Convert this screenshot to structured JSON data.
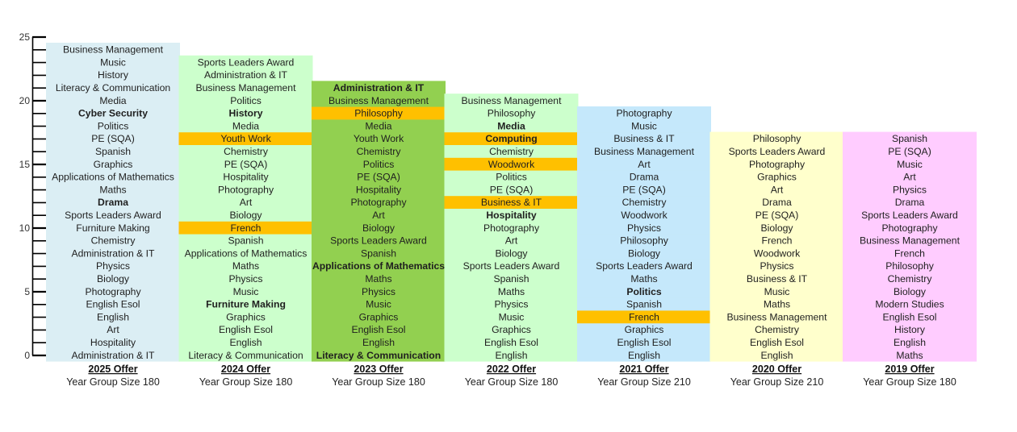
{
  "chart_data": {
    "type": "bar",
    "ylim": [
      0,
      25
    ],
    "y_ticks": [
      "0",
      "5",
      "10",
      "15",
      "20",
      "25"
    ],
    "colors": {
      "axis": "#000000",
      "text": "#1f1f1f",
      "highlight": "#ffc000"
    },
    "series": [
      {
        "label": "2025 Offer",
        "subtitle": "Year Group Size 180",
        "color": "#dbeef4",
        "subjects": [
          {
            "name": "Administration & IT"
          },
          {
            "name": "Hospitality"
          },
          {
            "name": "Art"
          },
          {
            "name": "English"
          },
          {
            "name": "English Esol"
          },
          {
            "name": "Photography"
          },
          {
            "name": "Biology"
          },
          {
            "name": "Physics"
          },
          {
            "name": "Administration & IT"
          },
          {
            "name": "Chemistry"
          },
          {
            "name": "Furniture Making"
          },
          {
            "name": "Sports Leaders Award"
          },
          {
            "name": "Drama",
            "bold": true
          },
          {
            "name": "Maths"
          },
          {
            "name": "Applications of Mathematics"
          },
          {
            "name": "Graphics"
          },
          {
            "name": "Spanish"
          },
          {
            "name": "PE (SQA)"
          },
          {
            "name": "Politics"
          },
          {
            "name": "Cyber Security",
            "bold": true
          },
          {
            "name": "Media"
          },
          {
            "name": "Literacy & Communication"
          },
          {
            "name": "History"
          },
          {
            "name": "Music"
          },
          {
            "name": "Business Management"
          }
        ]
      },
      {
        "label": "2024 Offer",
        "subtitle": "Year Group Size 180",
        "color": "#ccffcc",
        "subjects": [
          {
            "name": "Literacy & Communication"
          },
          {
            "name": "English"
          },
          {
            "name": "English Esol"
          },
          {
            "name": "Graphics"
          },
          {
            "name": "Furniture Making",
            "bold": true
          },
          {
            "name": "Music"
          },
          {
            "name": "Physics"
          },
          {
            "name": "Maths"
          },
          {
            "name": "Applications of Mathematics"
          },
          {
            "name": "Spanish"
          },
          {
            "name": "French",
            "highlight": true
          },
          {
            "name": "Biology"
          },
          {
            "name": "Art"
          },
          {
            "name": "Photography"
          },
          {
            "name": "Hospitality"
          },
          {
            "name": "PE (SQA)"
          },
          {
            "name": "Chemistry"
          },
          {
            "name": "Youth Work",
            "highlight": true
          },
          {
            "name": "Media"
          },
          {
            "name": "History",
            "bold": true
          },
          {
            "name": "Politics"
          },
          {
            "name": "Business Management"
          },
          {
            "name": "Administration & IT"
          },
          {
            "name": "Sports Leaders Award"
          }
        ]
      },
      {
        "label": "2023 Offer",
        "subtitle": "Year Group Size 180",
        "color": "#92d050",
        "subjects": [
          {
            "name": "Literacy & Communication",
            "bold": true
          },
          {
            "name": "English"
          },
          {
            "name": "English Esol"
          },
          {
            "name": "Graphics"
          },
          {
            "name": "Music"
          },
          {
            "name": "Physics"
          },
          {
            "name": "Maths"
          },
          {
            "name": "Applications of Mathematics",
            "bold": true
          },
          {
            "name": "Spanish"
          },
          {
            "name": "Sports Leaders Award"
          },
          {
            "name": "Biology"
          },
          {
            "name": "Art"
          },
          {
            "name": "Photography"
          },
          {
            "name": "Hospitality"
          },
          {
            "name": "PE (SQA)"
          },
          {
            "name": "Politics"
          },
          {
            "name": "Chemistry"
          },
          {
            "name": "Youth Work"
          },
          {
            "name": "Media"
          },
          {
            "name": "Philosophy",
            "highlight": true
          },
          {
            "name": "Business Management"
          },
          {
            "name": "Administration & IT",
            "bold": true
          }
        ]
      },
      {
        "label": "2022 Offer",
        "subtitle": "Year Group Size 180",
        "color": "#ccffcc",
        "subjects": [
          {
            "name": "English"
          },
          {
            "name": "English Esol"
          },
          {
            "name": "Graphics"
          },
          {
            "name": "Music"
          },
          {
            "name": "Physics"
          },
          {
            "name": "Maths"
          },
          {
            "name": "Spanish"
          },
          {
            "name": "Sports Leaders Award"
          },
          {
            "name": "Biology"
          },
          {
            "name": "Art"
          },
          {
            "name": "Photography"
          },
          {
            "name": "Hospitality",
            "bold": true
          },
          {
            "name": "Business & IT",
            "highlight": true
          },
          {
            "name": "PE (SQA)"
          },
          {
            "name": "Politics"
          },
          {
            "name": "Woodwork",
            "highlight": true
          },
          {
            "name": "Chemistry"
          },
          {
            "name": "Computing",
            "bold": true,
            "highlight": true
          },
          {
            "name": "Media",
            "bold": true
          },
          {
            "name": "Philosophy"
          },
          {
            "name": "Business Management"
          }
        ]
      },
      {
        "label": "2021 Offer",
        "subtitle": "Year Group Size 210",
        "color": "#c5e8fb",
        "subjects": [
          {
            "name": "English"
          },
          {
            "name": "English Esol"
          },
          {
            "name": "Graphics"
          },
          {
            "name": "French",
            "highlight": true
          },
          {
            "name": "Spanish"
          },
          {
            "name": "Politics",
            "bold": true
          },
          {
            "name": "Maths"
          },
          {
            "name": "Sports Leaders Award"
          },
          {
            "name": "Biology"
          },
          {
            "name": "Philosophy"
          },
          {
            "name": "Physics"
          },
          {
            "name": "Woodwork"
          },
          {
            "name": "Chemistry"
          },
          {
            "name": "PE (SQA)"
          },
          {
            "name": "Drama"
          },
          {
            "name": "Art"
          },
          {
            "name": "Business Management"
          },
          {
            "name": "Business & IT"
          },
          {
            "name": "Music"
          },
          {
            "name": "Photography"
          }
        ]
      },
      {
        "label": "2020 Offer",
        "subtitle": "Year Group Size 210",
        "color": "#ffffcc",
        "subjects": [
          {
            "name": "English"
          },
          {
            "name": "English Esol"
          },
          {
            "name": "Chemistry"
          },
          {
            "name": "Business Management"
          },
          {
            "name": "Maths"
          },
          {
            "name": "Music"
          },
          {
            "name": "Business & IT"
          },
          {
            "name": "Physics"
          },
          {
            "name": "Woodwork"
          },
          {
            "name": "French"
          },
          {
            "name": "Biology"
          },
          {
            "name": "PE (SQA)"
          },
          {
            "name": "Drama"
          },
          {
            "name": "Art"
          },
          {
            "name": "Graphics"
          },
          {
            "name": "Photography"
          },
          {
            "name": "Sports Leaders Award"
          },
          {
            "name": "Philosophy"
          }
        ]
      },
      {
        "label": "2019 Offer",
        "subtitle": "Year Group Size 180",
        "color": "#ffccff",
        "subjects": [
          {
            "name": "Maths"
          },
          {
            "name": "English"
          },
          {
            "name": "History"
          },
          {
            "name": "English Esol"
          },
          {
            "name": "Modern Studies"
          },
          {
            "name": "Biology"
          },
          {
            "name": "Chemistry"
          },
          {
            "name": "Philosophy"
          },
          {
            "name": "French"
          },
          {
            "name": "Business Management"
          },
          {
            "name": "Photography"
          },
          {
            "name": "Sports Leaders Award"
          },
          {
            "name": "Drama"
          },
          {
            "name": "Physics"
          },
          {
            "name": "Art"
          },
          {
            "name": "Music"
          },
          {
            "name": "PE (SQA)"
          },
          {
            "name": "Spanish"
          }
        ]
      }
    ]
  }
}
